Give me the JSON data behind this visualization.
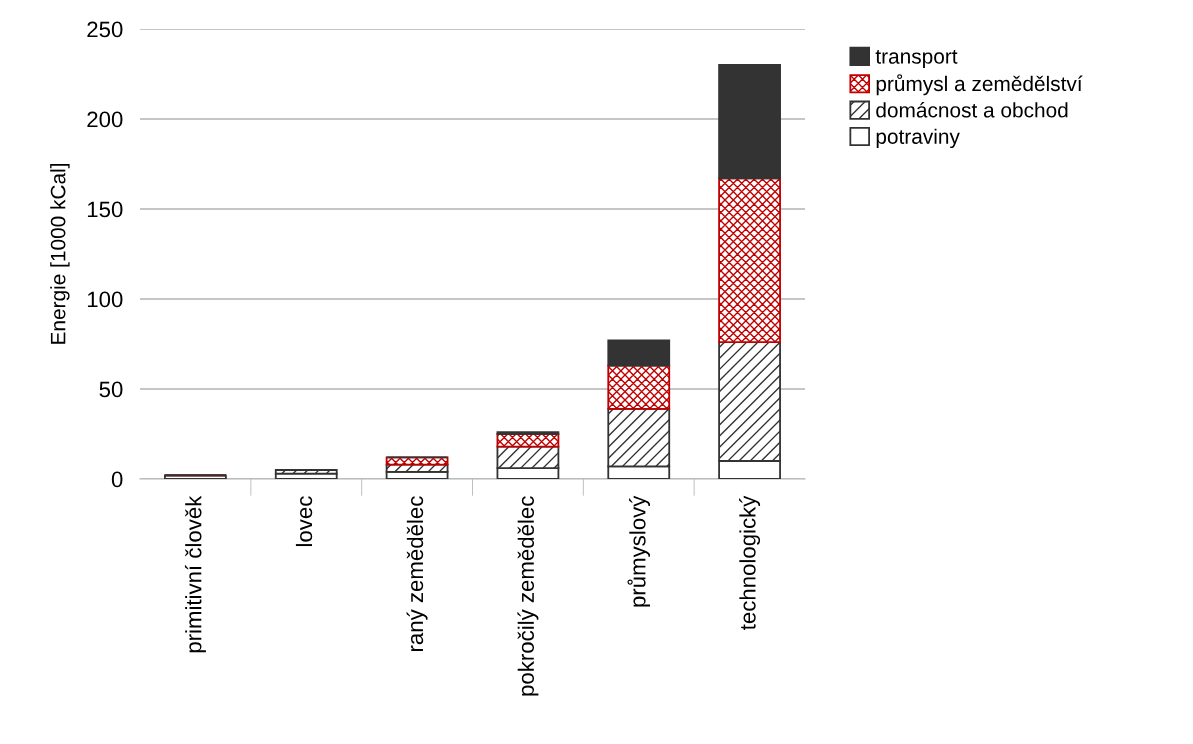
{
  "chart_data": {
    "type": "bar",
    "stacked": true,
    "ylabel": "Energie [1000 kCal]",
    "categories": [
      "primitivní člověk",
      "lovec",
      "raný zemědělec",
      "pokročilý zemědělec",
      "průmyslový",
      "technologický"
    ],
    "series": [
      {
        "name": "potraviny",
        "color": "#ffffff",
        "values": [
          2,
          3,
          4,
          6,
          7,
          10
        ]
      },
      {
        "name": "domácnost a obchod",
        "color": "#333333",
        "values": [
          0,
          2,
          4,
          12,
          32,
          66
        ]
      },
      {
        "name": "průmysl a zemědělství",
        "color": "#c00000",
        "values": [
          0,
          0,
          4,
          7,
          24,
          91
        ]
      },
      {
        "name": "transport",
        "color": "#333333",
        "values": [
          0,
          0,
          0,
          1,
          14,
          63
        ]
      }
    ],
    "ylim": [
      0,
      250
    ],
    "yticks": [
      0,
      50,
      100,
      150,
      200,
      250
    ],
    "grid": "y",
    "legend": "top right"
  }
}
